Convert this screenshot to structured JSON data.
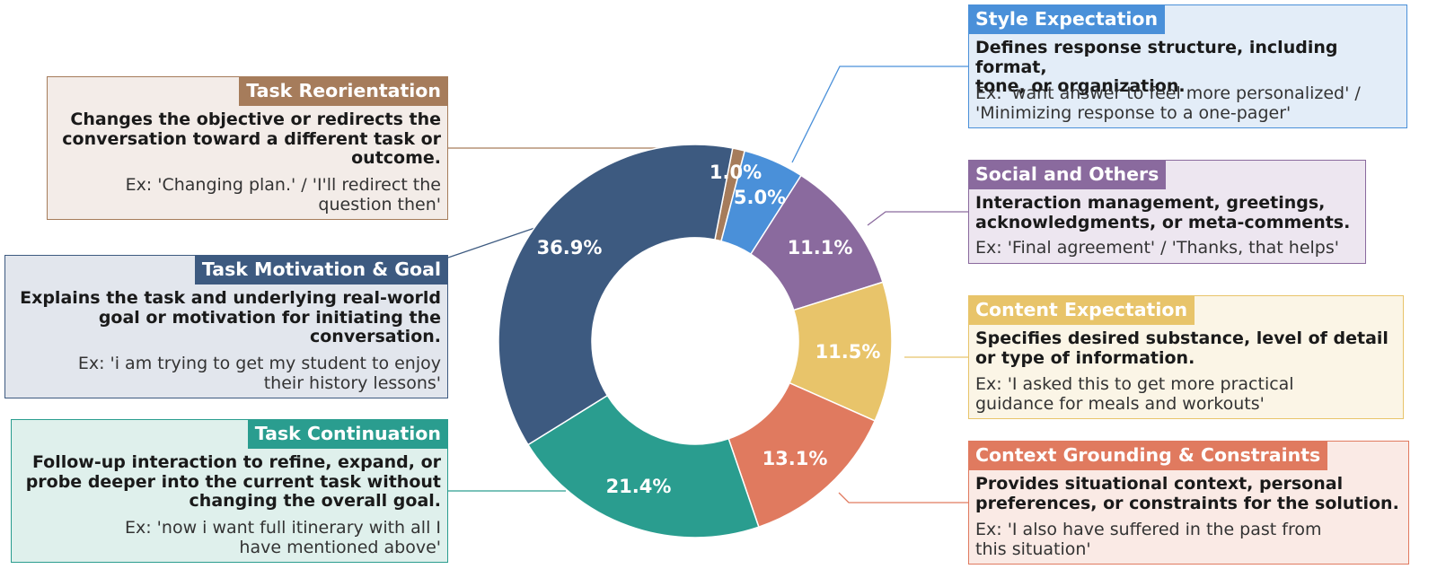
{
  "chart_data": {
    "type": "pie",
    "style": "donut",
    "slices": [
      {
        "key": "task_reorientation",
        "label": "Task Reorientation",
        "value": 1.0,
        "value_label": "1.0%",
        "color": "#a67c5b"
      },
      {
        "key": "style_expectation",
        "label": "Style Expectation",
        "value": 5.0,
        "value_label": "5.0%",
        "color": "#4a90d9"
      },
      {
        "key": "social_others",
        "label": "Social and Others",
        "value": 11.1,
        "value_label": "11.1%",
        "color": "#8a6a9e"
      },
      {
        "key": "content_expectation",
        "label": "Content Expectation",
        "value": 11.5,
        "value_label": "11.5%",
        "color": "#e8c46a"
      },
      {
        "key": "context_grounding",
        "label": "Context Grounding & Constraints",
        "value": 13.1,
        "value_label": "13.1%",
        "color": "#e07a5f"
      },
      {
        "key": "task_continuation",
        "label": "Task Continuation",
        "value": 21.4,
        "value_label": "21.4%",
        "color": "#2a9d8f"
      },
      {
        "key": "task_motivation",
        "label": "Task Motivation & Goal",
        "value": 36.9,
        "value_label": "36.9%",
        "color": "#3d5a80"
      }
    ]
  },
  "cards": {
    "task_reorientation": {
      "title": "Task Reorientation",
      "description": "Changes the objective or redirects the\nconversation toward a different task or\noutcome.",
      "example": "Ex: 'Changing plan.' / 'I'll redirect the\nquestion then'",
      "border": "#a67c5b",
      "bg": "#f3ece8"
    },
    "task_motivation": {
      "title": "Task Motivation & Goal",
      "description": "Explains the task and underlying real-world\ngoal or motivation for initiating the\nconversation.",
      "example": "Ex: 'i am trying to get my student to enjoy\ntheir history lessons'",
      "border": "#3d5a80",
      "bg": "#e2e6ed"
    },
    "task_continuation": {
      "title": "Task Continuation",
      "description": "Follow-up interaction to refine, expand, or\nprobe deeper into the current task without\nchanging the overall goal.",
      "example": "Ex: 'now i want full itinerary with all I\nhave  mentioned above'",
      "border": "#2a9d8f",
      "bg": "#dff0ec"
    },
    "style_expectation": {
      "title": "Style Expectation",
      "description": "Defines response structure, including format,\ntone, or organization.",
      "example": "Ex: 'want answer to feel more personalized' /\n'Minimizing response to a one-pager'",
      "border": "#4a90d9",
      "bg": "#e3edf8"
    },
    "social_others": {
      "title": "Social and Others",
      "description": "Interaction management, greetings,\nacknowledgments, or meta-comments.",
      "example": "Ex: 'Final agreement' / 'Thanks, that helps'",
      "border": "#8a6a9e",
      "bg": "#ede6f0"
    },
    "content_expectation": {
      "title": "Content Expectation",
      "description": "Specifies desired substance, level of detail\nor type of information.",
      "example": "Ex: 'I asked this to get more practical\nguidance for meals and workouts'",
      "border": "#e8c46a",
      "bg": "#fbf5e6"
    },
    "context_grounding": {
      "title": "Context Grounding & Constraints",
      "description": "Provides situational context, personal\npreferences, or constraints for the solution.",
      "example": "Ex: 'I also have suffered in the past from\nthis situation'",
      "border": "#e07a5f",
      "bg": "#faeae5"
    }
  }
}
